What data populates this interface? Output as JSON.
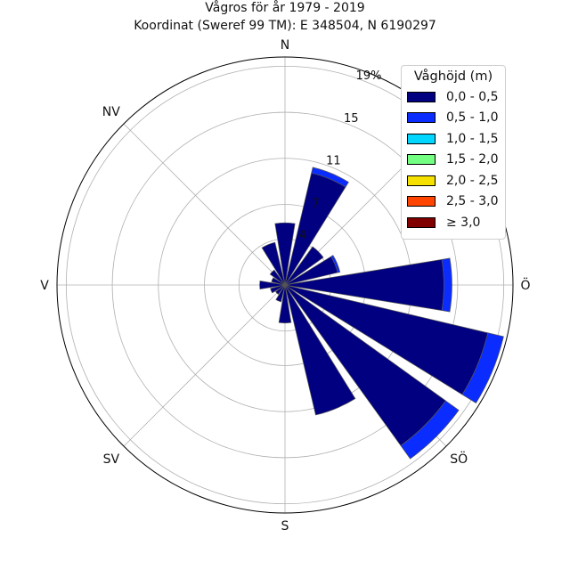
{
  "chart_data": {
    "type": "polar-bar",
    "title": "Vågros för år 1979 - 2019",
    "subtitle": "Koordinat (Sweref 99 TM): E 348504, N 6190297",
    "direction_labels": [
      "N",
      "NV",
      "V",
      "SV",
      "S",
      "SÖ",
      "Ö"
    ],
    "radial_ticks": [
      {
        "value": 4,
        "label": "4"
      },
      {
        "value": 7,
        "label": "7"
      },
      {
        "value": 11,
        "label": "11"
      },
      {
        "value": 15,
        "label": "15"
      },
      {
        "value": 19,
        "label": "19%"
      }
    ],
    "rmax": 19.8,
    "unit": "%",
    "legend": {
      "title": "Våghöjd (m)",
      "placement": "top-right",
      "items": [
        {
          "label": "0,0 - 0,5",
          "color": "#000080"
        },
        {
          "label": "0,5 - 1,0",
          "color": "#0a2cff"
        },
        {
          "label": "1,0 - 1,5",
          "color": "#00d6ff"
        },
        {
          "label": "1,5 - 2,0",
          "color": "#72ff82"
        },
        {
          "label": "2,0 - 2,5",
          "color": "#f5e000"
        },
        {
          "label": "2,5 - 3,0",
          "color": "#ff4500"
        },
        {
          "label": "≥ 3,0",
          "color": "#800000"
        }
      ]
    },
    "sector_width_deg": 22.5,
    "sectors": [
      {
        "direction_deg": 0,
        "values": [
          5.4,
          0.0
        ]
      },
      {
        "direction_deg": 22.5,
        "values": [
          10.0,
          0.5
        ]
      },
      {
        "direction_deg": 45,
        "values": [
          4.1,
          0.0
        ]
      },
      {
        "direction_deg": 67.5,
        "values": [
          4.7,
          0.2
        ]
      },
      {
        "direction_deg": 90,
        "values": [
          13.8,
          0.7
        ]
      },
      {
        "direction_deg": 112.5,
        "values": [
          18.1,
          1.4
        ]
      },
      {
        "direction_deg": 135,
        "values": [
          17.2,
          1.4
        ]
      },
      {
        "direction_deg": 157.5,
        "values": [
          11.6,
          0.0
        ]
      },
      {
        "direction_deg": 180,
        "values": [
          3.3,
          0.0
        ]
      },
      {
        "direction_deg": 202.5,
        "values": [
          1.5,
          0.0
        ]
      },
      {
        "direction_deg": 225,
        "values": [
          1.0,
          0.0
        ]
      },
      {
        "direction_deg": 247.5,
        "values": [
          1.3,
          0.0
        ]
      },
      {
        "direction_deg": 270,
        "values": [
          2.2,
          0.0
        ]
      },
      {
        "direction_deg": 292.5,
        "values": [
          1.2,
          0.0
        ]
      },
      {
        "direction_deg": 315,
        "values": [
          1.6,
          0.0
        ]
      },
      {
        "direction_deg": 337.5,
        "values": [
          3.8,
          0.0
        ]
      }
    ]
  }
}
